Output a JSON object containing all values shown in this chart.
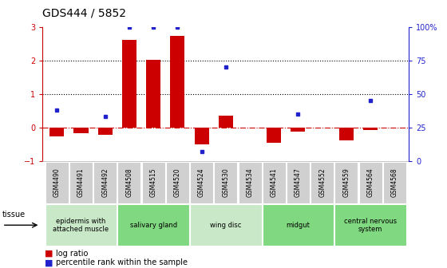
{
  "title": "GDS444 / 5852",
  "samples": [
    "GSM4490",
    "GSM4491",
    "GSM4492",
    "GSM4508",
    "GSM4515",
    "GSM4520",
    "GSM4524",
    "GSM4530",
    "GSM4534",
    "GSM4541",
    "GSM4547",
    "GSM4552",
    "GSM4559",
    "GSM4564",
    "GSM4568"
  ],
  "log_ratio": [
    -0.28,
    -0.18,
    -0.22,
    2.6,
    2.02,
    2.72,
    -0.5,
    0.35,
    0.0,
    -0.45,
    -0.12,
    0.0,
    -0.38,
    -0.08,
    0.0
  ],
  "percentile_vals": [
    38,
    null,
    33,
    100,
    100,
    100,
    7,
    70,
    null,
    null,
    35,
    null,
    null,
    45,
    null
  ],
  "tissue_groups": [
    {
      "label": "epidermis with\nattached muscle",
      "start": 0,
      "end": 3,
      "color": "#c8e8c8"
    },
    {
      "label": "salivary gland",
      "start": 3,
      "end": 6,
      "color": "#80d880"
    },
    {
      "label": "wing disc",
      "start": 6,
      "end": 9,
      "color": "#c8e8c8"
    },
    {
      "label": "midgut",
      "start": 9,
      "end": 12,
      "color": "#80d880"
    },
    {
      "label": "central nervous\nsystem",
      "start": 12,
      "end": 15,
      "color": "#80d880"
    }
  ],
  "ylim_left": [
    -1,
    3
  ],
  "ylim_right": [
    0,
    100
  ],
  "bar_color": "#cc0000",
  "dot_color": "#2222cc",
  "zero_line_color": "#cc0000",
  "grid_color": "#000000",
  "title_fontsize": 10,
  "tick_fontsize": 7,
  "sample_fontsize": 5.5,
  "tissue_fontsize": 6,
  "legend_fontsize": 7
}
